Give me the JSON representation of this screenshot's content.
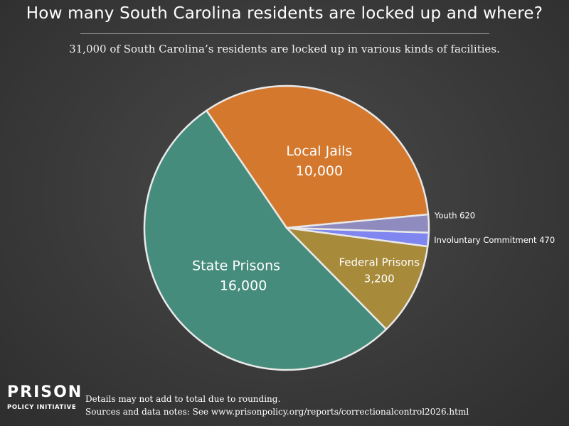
{
  "header": {
    "title": "How many South Carolina residents are locked up and where?",
    "subtitle": "31,000 of South Carolina’s residents are locked up in various kinds of facilities."
  },
  "footer": {
    "logo_line1": "PRISON",
    "logo_line2": "POLICY INITIATIVE",
    "note1": "Details may not add to total due to rounding.",
    "note2": "Sources and data notes: See www.prisonpolicy.org/reports/correctionalcontrol2026.html"
  },
  "chart_data": {
    "type": "pie",
    "title": "How many South Carolina residents are locked up and where?",
    "subtitle": "31,000 of South Carolina’s residents are locked up in various kinds of facilities.",
    "total_label": "31,000",
    "slices": [
      {
        "name": "Local Jails",
        "value": 10000,
        "label": "10,000",
        "color": "#d4782e",
        "label_style": "inside-large"
      },
      {
        "name": "Youth",
        "value": 620,
        "label": "620",
        "color": "#8f8bbf",
        "label_style": "outside"
      },
      {
        "name": "Involuntary Commitment",
        "value": 470,
        "label": "470",
        "color": "#7f86f0",
        "label_style": "outside"
      },
      {
        "name": "Federal Prisons",
        "value": 3200,
        "label": "3,200",
        "color": "#a88a3b",
        "label_style": "inside-small"
      },
      {
        "name": "State Prisons",
        "value": 16000,
        "label": "16,000",
        "color": "#468c7c",
        "label_style": "inside-large"
      }
    ],
    "start_slice": "Local Jails",
    "direction": "clockwise",
    "legend": "none"
  }
}
